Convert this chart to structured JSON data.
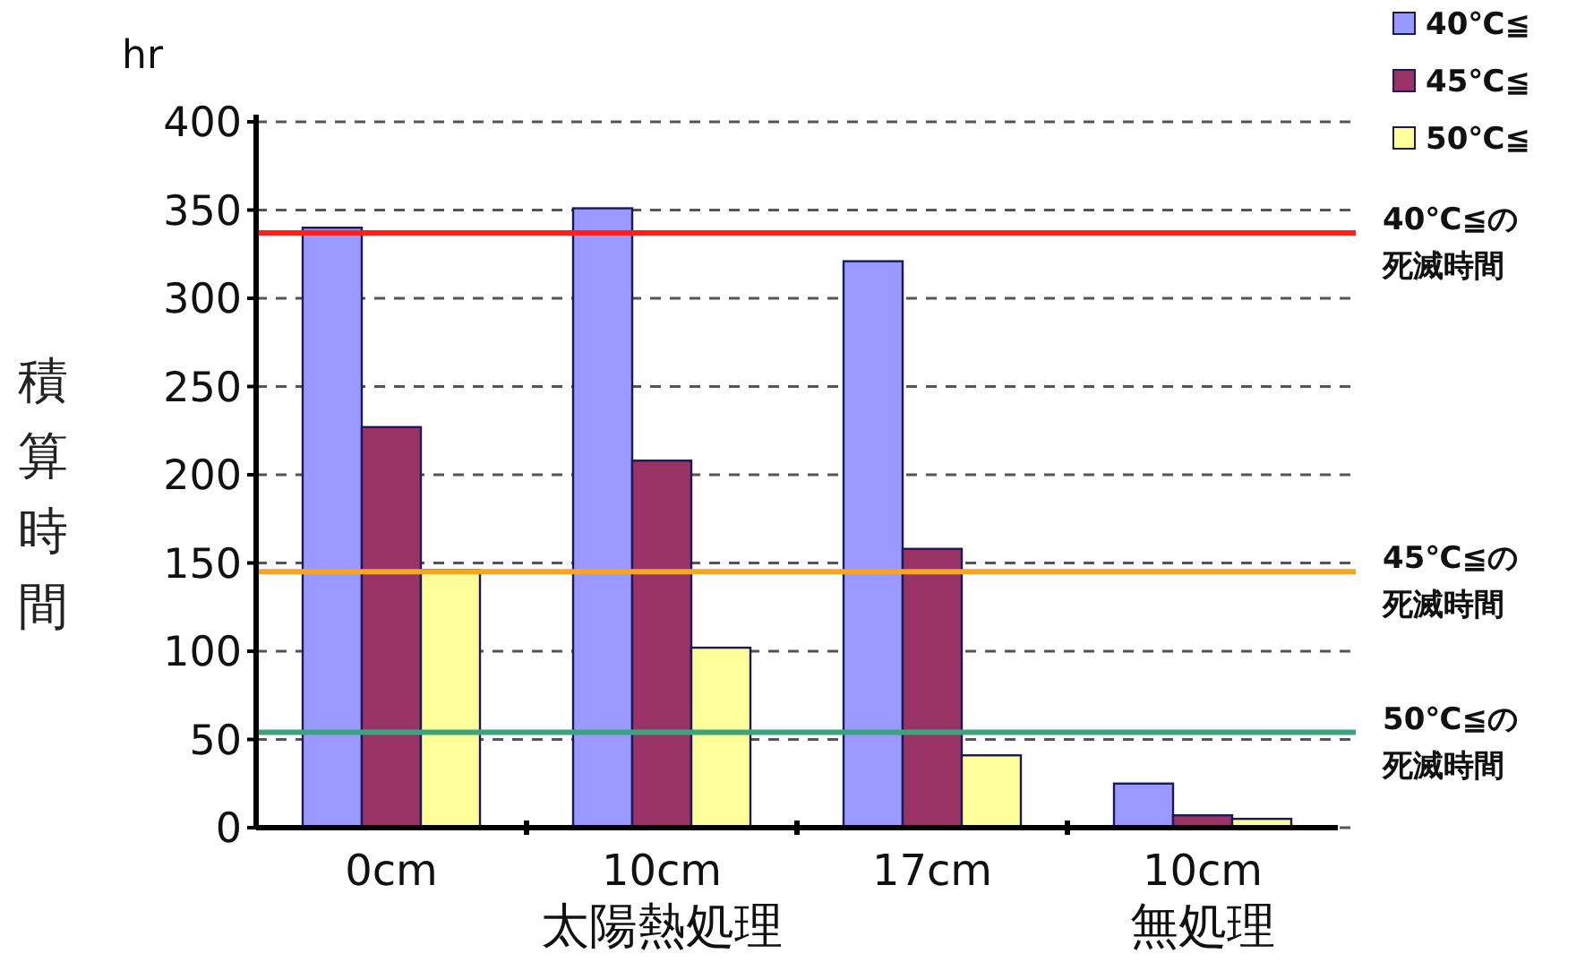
{
  "chart_data": {
    "type": "bar",
    "ylabel": "積算時間",
    "categories": [
      "0cm",
      "10cm",
      "17cm",
      "10cm"
    ],
    "series": [
      {
        "name": "40℃≦",
        "color": "#9999ff",
        "values": [
          340,
          351,
          321,
          25
        ]
      },
      {
        "name": "45℃≦",
        "color": "#993366",
        "values": [
          227,
          208,
          158,
          7
        ]
      },
      {
        "name": "50℃≦",
        "color": "#ffff99",
        "values": [
          146,
          102,
          41,
          5
        ]
      }
    ],
    "ylim": [
      0,
      400
    ],
    "yticks": [
      0,
      50,
      100,
      150,
      200,
      250,
      300,
      350,
      400
    ],
    "grid": "y",
    "legend": "top right",
    "ref_lines": [
      {
        "axis": "y",
        "value": 337,
        "label": "40℃≦の死滅時間",
        "color": "#ff2020"
      },
      {
        "axis": "y",
        "value": 145,
        "label": "45℃≦の死滅時間",
        "color": "#f5a623"
      },
      {
        "axis": "y",
        "value": 54,
        "label": "50℃≦の死滅時間",
        "color": "#3aa57a"
      }
    ],
    "annotations": [
      "hr",
      "太陽熱処理",
      "無処理"
    ]
  }
}
